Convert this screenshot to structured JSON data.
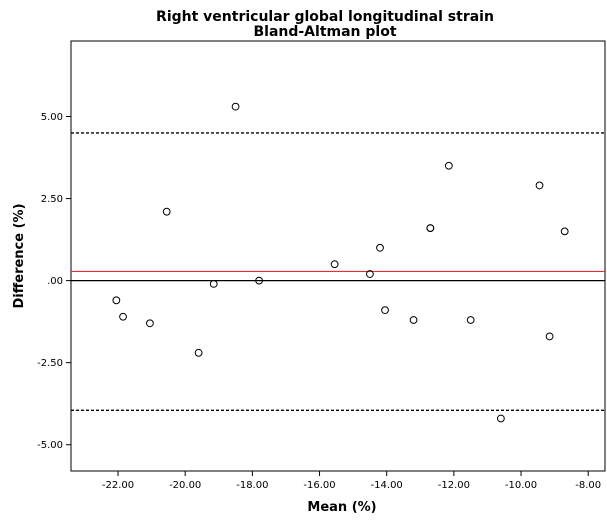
{
  "chart_data": {
    "type": "scatter",
    "title": "Right ventricular global longitudinal strain",
    "subtitle": "Bland-Altman plot",
    "xlabel": "Mean (%)",
    "ylabel": "Difference (%)",
    "xlim": [
      -23.4,
      -7.5
    ],
    "ylim": [
      -5.8,
      7.3
    ],
    "x_ticks": [
      -22,
      -20,
      -18,
      -16,
      -14,
      -12,
      -10,
      -8
    ],
    "x_tick_labels": [
      "-22.00",
      "-20.00",
      "-18.00",
      "-16.00",
      "-14.00",
      "-12.00",
      "-10.00",
      "-8.00"
    ],
    "y_ticks": [
      5,
      2.5,
      0,
      -2.5,
      -5
    ],
    "y_tick_labels": [
      "5.00",
      "2.50",
      ".00",
      "-2.50",
      "-5.00"
    ],
    "grid": false,
    "legend": "none",
    "reference_lines": [
      {
        "kind": "zero",
        "y": 0,
        "color": "#000000",
        "style": "solid"
      },
      {
        "kind": "mean-difference",
        "y": 0.28,
        "color": "#e0303a",
        "style": "solid"
      },
      {
        "kind": "upper-limit",
        "y": 4.5,
        "color": "#000000",
        "style": "dashed"
      },
      {
        "kind": "lower-limit",
        "y": -3.95,
        "color": "#000000",
        "style": "dashed"
      }
    ],
    "points": [
      {
        "x": -22.05,
        "y": -0.6
      },
      {
        "x": -21.85,
        "y": -1.1
      },
      {
        "x": -21.05,
        "y": -1.3
      },
      {
        "x": -20.55,
        "y": 2.1
      },
      {
        "x": -19.6,
        "y": -2.2
      },
      {
        "x": -19.15,
        "y": -0.1
      },
      {
        "x": -18.5,
        "y": 5.3
      },
      {
        "x": -17.8,
        "y": 0.0
      },
      {
        "x": -15.55,
        "y": 0.5
      },
      {
        "x": -14.5,
        "y": 0.2
      },
      {
        "x": -14.2,
        "y": 1.0
      },
      {
        "x": -14.05,
        "y": -0.9
      },
      {
        "x": -13.2,
        "y": -1.2
      },
      {
        "x": -12.7,
        "y": 1.6
      },
      {
        "x": -12.7,
        "y": 1.6
      },
      {
        "x": -12.15,
        "y": 3.5
      },
      {
        "x": -11.5,
        "y": -1.2
      },
      {
        "x": -10.6,
        "y": -4.2
      },
      {
        "x": -9.45,
        "y": 2.9
      },
      {
        "x": -9.15,
        "y": -1.7
      },
      {
        "x": -8.7,
        "y": 1.5
      }
    ],
    "marker": "open-circle"
  }
}
